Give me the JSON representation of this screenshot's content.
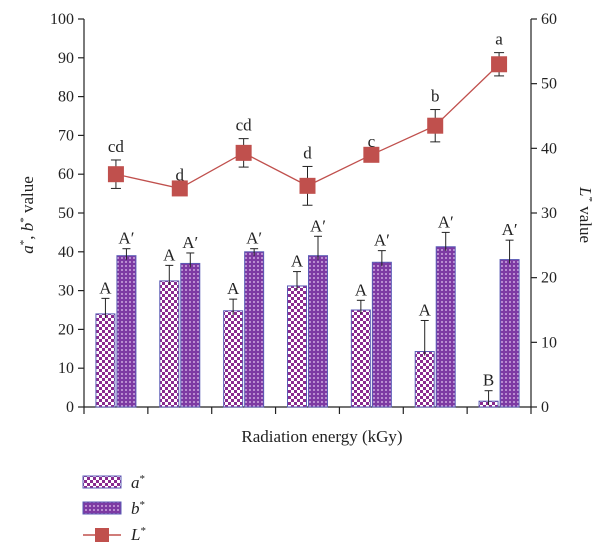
{
  "chart_data": {
    "type": "bar",
    "xlabel": "Radiation energy (kGy)",
    "ylabel_left": "a*, b* value",
    "ylabel_right": "L* value",
    "ylim_left": [
      0,
      100
    ],
    "ylim_right": [
      0,
      60
    ],
    "yticks_left": [
      "0",
      "10",
      "20",
      "30",
      "40",
      "50",
      "60",
      "70",
      "80",
      "90",
      "100"
    ],
    "yticks_right": [
      "0",
      "10",
      "20",
      "30",
      "40",
      "50",
      "60"
    ],
    "n_groups": 7,
    "series": [
      {
        "name": "a*",
        "kind": "bar",
        "axis": "left",
        "values": [
          24.0,
          32.5,
          24.8,
          31.2,
          25.0,
          14.3,
          1.5
        ],
        "errors": [
          4.0,
          4.0,
          3.0,
          3.7,
          2.5,
          8.0,
          2.7
        ],
        "letters": [
          "A",
          "A",
          "A",
          "A",
          "A",
          "A",
          "B"
        ]
      },
      {
        "name": "b*",
        "kind": "bar",
        "axis": "left",
        "values": [
          39.0,
          37.0,
          40.0,
          39.0,
          37.3,
          41.3,
          38.0
        ],
        "errors": [
          1.8,
          2.7,
          0.8,
          5.0,
          3.0,
          3.7,
          5.0
        ],
        "letters": [
          "A′",
          "A′",
          "A′",
          "A′",
          "A′",
          "A′",
          "A′"
        ]
      },
      {
        "name": "L*",
        "kind": "line",
        "axis": "right",
        "values": [
          36.0,
          33.8,
          39.3,
          34.2,
          39.0,
          43.5,
          53.0
        ],
        "errors": [
          2.2,
          0.0,
          2.2,
          3.0,
          0.0,
          2.5,
          1.8
        ],
        "letters": [
          "cd",
          "d",
          "cd",
          "d",
          "c",
          "b",
          "a"
        ]
      }
    ]
  },
  "legend": [
    {
      "label": "a*",
      "icon": "checkered-bar-icon"
    },
    {
      "label": "b*",
      "icon": "dotted-bar-icon"
    },
    {
      "label": "L*",
      "icon": "square-marker-line-icon"
    }
  ],
  "colors": {
    "bar_outline": "#5b5bb5",
    "a_pattern": "#8a2b8f",
    "b_fill": "#8e44ad",
    "line": "#c0504d",
    "axis": "#222222"
  }
}
